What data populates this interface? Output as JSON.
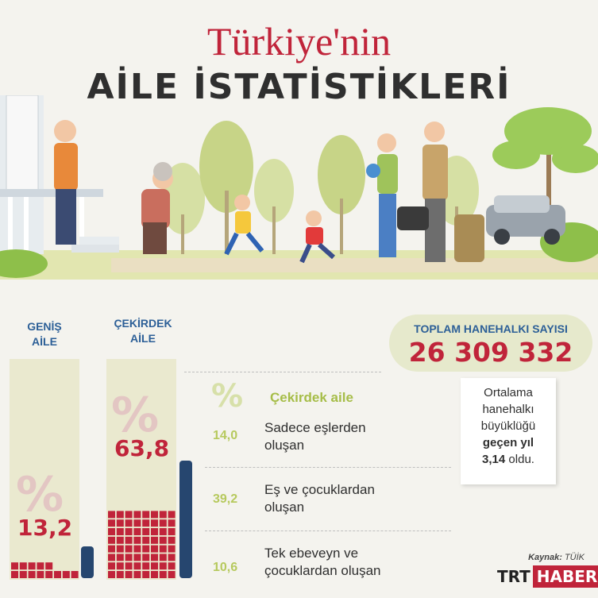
{
  "title": {
    "line1": "Türkiye'nin",
    "line2": "AİLE İSTATİSTİKLERİ"
  },
  "columns": {
    "genis": {
      "label_line1": "GENİŞ",
      "label_line2": "AİLE",
      "percent_symbol": "%",
      "value": "13,2",
      "share": 13.2
    },
    "cekirdek": {
      "label_line1": "ÇEKİRDEK",
      "label_line2": "AİLE",
      "percent_symbol": "%",
      "value": "63,8",
      "share": 63.8
    }
  },
  "breakdown": {
    "percent_symbol": "%",
    "heading": "Çekirdek aile",
    "rows": [
      {
        "value": "14,0",
        "line1": "Sadece eşlerden",
        "line2": "oluşan"
      },
      {
        "value": "39,2",
        "line1": "Eş ve çocuklardan",
        "line2": "oluşan"
      },
      {
        "value": "10,6",
        "line1": "Tek ebeveyn ve",
        "line2": "çocuklardan oluşan"
      }
    ]
  },
  "total": {
    "label": "TOPLAM HANEHALKI SAYISI",
    "value": "26 309 332"
  },
  "average": {
    "line1": "Ortalama",
    "line2": "hanehalkı",
    "line3": "büyüklüğü",
    "bold": "geçen yıl",
    "value": "3,14",
    "suffix": "oldu."
  },
  "source": {
    "label": "Kaynak:",
    "value": "TÜİK"
  },
  "logo": {
    "part1": "TRT",
    "part2": "HABER"
  },
  "colors": {
    "red": "#c0243a",
    "blue": "#2c5f97",
    "green": "#b6c95d",
    "ground": "#dfe4a6"
  }
}
